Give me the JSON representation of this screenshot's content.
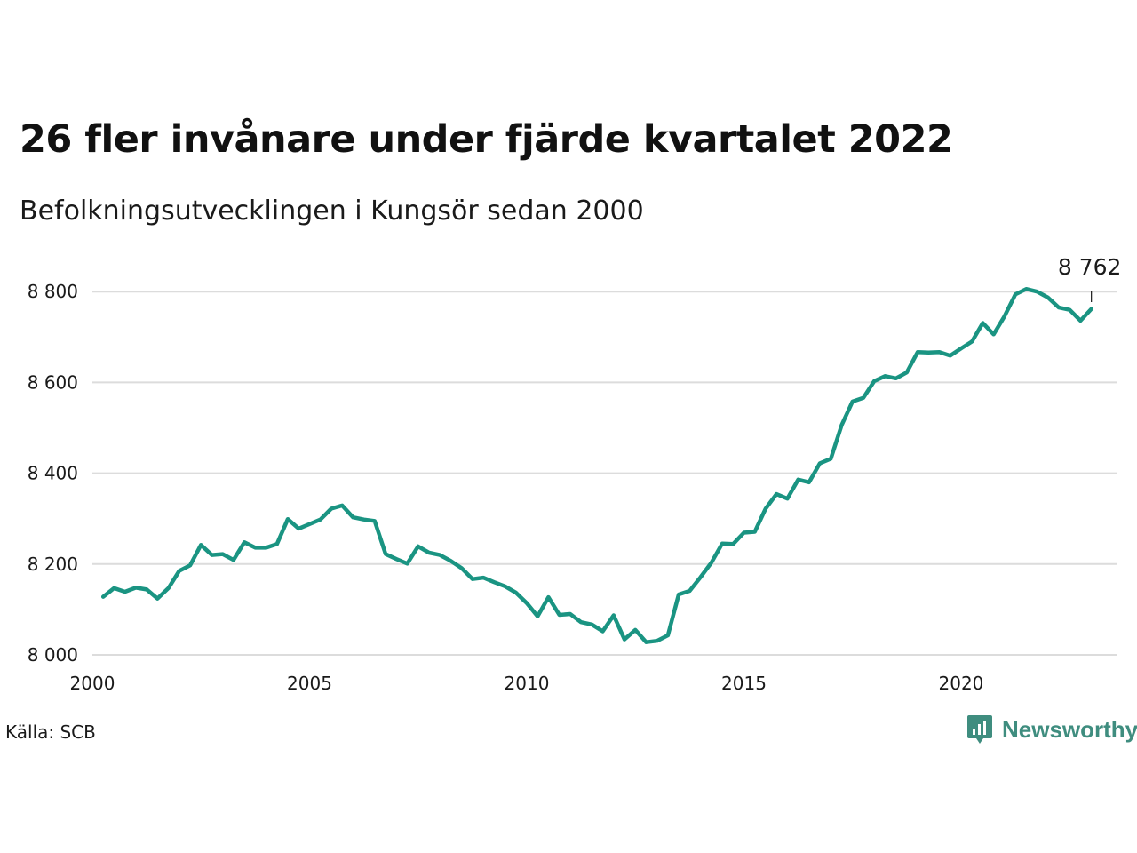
{
  "title": "26 fler invånare under fjärde kvartalet 2022",
  "subtitle": "Befolkningsutvecklingen i Kungsör sedan 2000",
  "source": "Källa: SCB",
  "brand": {
    "name": "Newsworthy",
    "logo_icon": "chart-bubble-icon",
    "color": "#3f8d7f"
  },
  "chart_data": {
    "type": "line",
    "xlim": [
      2000,
      2023.6
    ],
    "ylim": [
      8000,
      8820
    ],
    "x_ticks": [
      2000,
      2005,
      2010,
      2015,
      2020
    ],
    "x_tick_labels": [
      "2000",
      "2005",
      "2010",
      "2015",
      "2020"
    ],
    "y_ticks": [
      8000,
      8200,
      8400,
      8600,
      8800
    ],
    "y_tick_labels": [
      "8 000",
      "8 200",
      "8 400",
      "8 600",
      "8 800"
    ],
    "grid": true,
    "line_color": "#1a9482",
    "end_label": "8 762",
    "series": [
      {
        "x": [
          2000.25,
          2000.5,
          2000.75,
          2001.0,
          2001.25,
          2001.5,
          2001.75,
          2002.0,
          2002.25,
          2002.5,
          2002.75,
          2003.0,
          2003.25,
          2003.5,
          2003.75,
          2004.0,
          2004.25,
          2004.5,
          2004.75,
          2005.0,
          2005.25,
          2005.5,
          2005.75,
          2006.0,
          2006.25,
          2006.5,
          2006.75,
          2007.0,
          2007.25,
          2007.5,
          2007.75,
          2008.0,
          2008.25,
          2008.5,
          2008.75,
          2009.0,
          2009.25,
          2009.5,
          2009.75,
          2010.0,
          2010.25,
          2010.5,
          2010.75,
          2011.0,
          2011.25,
          2011.5,
          2011.75,
          2012.0,
          2012.25,
          2012.5,
          2012.75,
          2013.0,
          2013.25,
          2013.5,
          2013.75,
          2014.0,
          2014.25,
          2014.5,
          2014.75,
          2015.0,
          2015.25,
          2015.5,
          2015.75,
          2016.0,
          2016.25,
          2016.5,
          2016.75,
          2017.0,
          2017.25,
          2017.5,
          2017.75,
          2018.0,
          2018.25,
          2018.5,
          2018.75,
          2019.0,
          2019.25,
          2019.5,
          2019.75,
          2020.0,
          2020.25,
          2020.5,
          2020.75,
          2021.0,
          2021.25,
          2021.5,
          2021.75,
          2022.0,
          2022.25,
          2022.5,
          2022.75,
          2023.0
        ],
        "values": [
          8128,
          8147,
          8139,
          8148,
          8144,
          8124,
          8147,
          8185,
          8197,
          8242,
          8220,
          8222,
          8209,
          8248,
          8236,
          8236,
          8244,
          8299,
          8278,
          8288,
          8298,
          8322,
          8329,
          8303,
          8298,
          8295,
          8222,
          8211,
          8201,
          8239,
          8225,
          8220,
          8207,
          8191,
          8167,
          8170,
          8160,
          8151,
          8137,
          8114,
          8085,
          8127,
          8088,
          8090,
          8072,
          8067,
          8052,
          8087,
          8034,
          8055,
          8028,
          8031,
          8043,
          8133,
          8141,
          8171,
          8203,
          8245,
          8244,
          8269,
          8271,
          8322,
          8354,
          8344,
          8386,
          8380,
          8422,
          8432,
          8506,
          8558,
          8566,
          8603,
          8614,
          8609,
          8622,
          8667,
          8666,
          8667,
          8659,
          8675,
          8690,
          8731,
          8706,
          8746,
          8794,
          8806,
          8800,
          8787,
          8765,
          8760,
          8736,
          8762
        ]
      }
    ]
  }
}
